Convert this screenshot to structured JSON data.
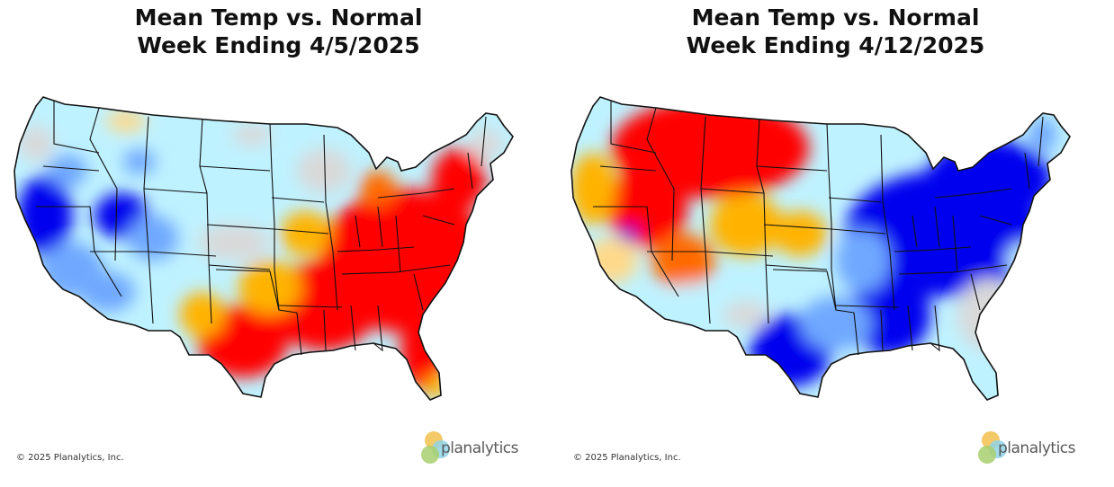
{
  "maps": [
    {
      "title_line1": "Mean Temp vs. Normal",
      "title_line2": "Week Ending 4/5/2025",
      "copyright": "© 2025 Planalytics, Inc.",
      "logo_text": "planalytics",
      "pattern": "warm-east-cool-west"
    },
    {
      "title_line1": "Mean Temp vs. Normal",
      "title_line2": "Week Ending 4/12/2025",
      "copyright": "© 2025 Planalytics, Inc.",
      "logo_text": "planalytics",
      "pattern": "warm-west-cool-east"
    }
  ],
  "colors": {
    "much_above": "#ff0000",
    "above": "#ff6a00",
    "slightly_above": "#ffb300",
    "near_normal_warm": "#ffd98a",
    "near_normal": "#d9d9d9",
    "slightly_below": "#bff2ff",
    "below": "#6fa8ff",
    "much_below": "#0000ee",
    "border": "#111111"
  }
}
